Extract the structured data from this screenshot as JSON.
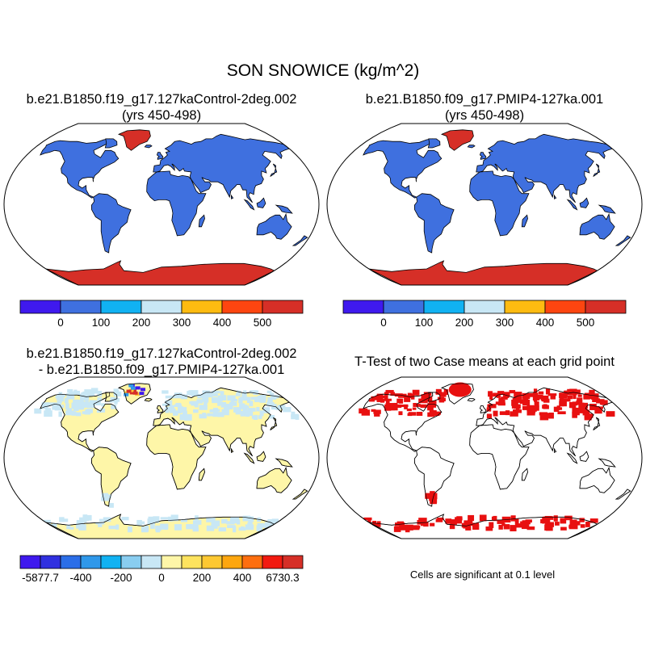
{
  "title": "SON SNOWICE (kg/m^2)",
  "panels": {
    "tl": {
      "line1": "b.e21.B1850.f19_g17.127kaControl-2deg.002",
      "line2": "(yrs 450-498)"
    },
    "tr": {
      "line1": "b.e21.B1850.f09_g17.PMIP4-127ka.001",
      "line2": "(yrs 450-498)"
    },
    "bl": {
      "line1": "b.e21.B1850.f19_g17.127kaControl-2deg.002",
      "line2": "- b.e21.B1850.f09_g17.PMIP4-127ka.001"
    },
    "br": {
      "line1": "T-Test of two Case means at each grid point"
    }
  },
  "colorbars": {
    "top": {
      "colors": [
        "#3f19ee",
        "#3f70df",
        "#11b2f2",
        "#c8e7f5",
        "#fdbb11",
        "#fd4510",
        "#d62f27"
      ],
      "labels": [
        "0",
        "100",
        "200",
        "300",
        "400",
        "500"
      ]
    },
    "bottom": {
      "colors": [
        "#3f19ee",
        "#3030e0",
        "#2b6ee8",
        "#2f98ea",
        "#11b2f2",
        "#89cdf0",
        "#c8e7f5",
        "#fef6a8",
        "#fde35e",
        "#fdc832",
        "#fda60f",
        "#fd6e0f",
        "#f21a10",
        "#d62f27"
      ],
      "labels": [
        "-5877.7",
        "-400",
        "-200",
        "0",
        "200",
        "400",
        "6730.3"
      ]
    }
  },
  "map_colors": {
    "land_base": "#3f70df",
    "ice": "#d62f27",
    "diff_land": "#fef6a8",
    "diff_light_blue": "#c8e7f5",
    "significant": "#e81010"
  },
  "note": "Cells are significant at 0.1 level"
}
